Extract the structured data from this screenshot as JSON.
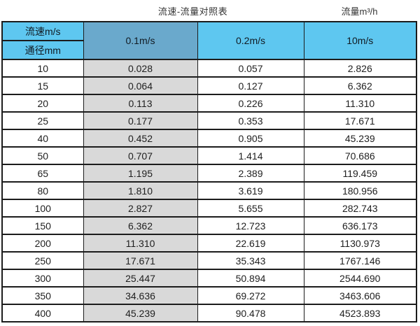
{
  "page": {
    "title_left": "流速-流量对照表",
    "title_right": "流量m³/h"
  },
  "colors": {
    "header_blue": "#5ec7f0",
    "header_steel": "#6aa9cc",
    "col1_gray": "#d9d9d9",
    "border": "#1c1c1c"
  },
  "table": {
    "corner_top": "流速m/s",
    "corner_bottom": "通径mm",
    "columns": [
      "0.1m/s",
      "0.2m/s",
      "10m/s"
    ],
    "rows": [
      {
        "dn": "10",
        "v1": "0.028",
        "v2": "0.057",
        "v3": "2.826"
      },
      {
        "dn": "15",
        "v1": "0.064",
        "v2": "0.127",
        "v3": "6.362"
      },
      {
        "dn": "20",
        "v1": "0.113",
        "v2": "0.226",
        "v3": "11.310"
      },
      {
        "dn": "25",
        "v1": "0.177",
        "v2": "0.353",
        "v3": "17.671"
      },
      {
        "dn": "40",
        "v1": "0.452",
        "v2": "0.905",
        "v3": "45.239"
      },
      {
        "dn": "50",
        "v1": "0.707",
        "v2": "1.414",
        "v3": "70.686"
      },
      {
        "dn": "65",
        "v1": "1.195",
        "v2": "2.389",
        "v3": "119.459"
      },
      {
        "dn": "80",
        "v1": "1.810",
        "v2": "3.619",
        "v3": "180.956"
      },
      {
        "dn": "100",
        "v1": "2.827",
        "v2": "5.655",
        "v3": "282.743"
      },
      {
        "dn": "150",
        "v1": "6.362",
        "v2": "12.723",
        "v3": "636.173"
      },
      {
        "dn": "200",
        "v1": "11.310",
        "v2": "22.619",
        "v3": "1130.973"
      },
      {
        "dn": "250",
        "v1": "17.671",
        "v2": "35.343",
        "v3": "1767.146"
      },
      {
        "dn": "300",
        "v1": "25.447",
        "v2": "50.894",
        "v3": "2544.690"
      },
      {
        "dn": "350",
        "v1": "34.636",
        "v2": "69.272",
        "v3": "3463.606"
      },
      {
        "dn": "400",
        "v1": "45.239",
        "v2": "90.478",
        "v3": "4523.893"
      }
    ]
  },
  "chart_data": {
    "type": "table",
    "title": "流速-流量对照表",
    "unit_label": "流量m³/h",
    "row_header": "通径mm",
    "col_header": "流速m/s",
    "columns": [
      "0.1m/s",
      "0.2m/s",
      "10m/s"
    ],
    "diameters_mm": [
      10,
      15,
      20,
      25,
      40,
      50,
      65,
      80,
      100,
      150,
      200,
      250,
      300,
      350,
      400
    ],
    "series": [
      {
        "name": "0.1m/s",
        "values": [
          0.028,
          0.064,
          0.113,
          0.177,
          0.452,
          0.707,
          1.195,
          1.81,
          2.827,
          6.362,
          11.31,
          17.671,
          25.447,
          34.636,
          45.239
        ]
      },
      {
        "name": "0.2m/s",
        "values": [
          0.057,
          0.127,
          0.226,
          0.353,
          0.905,
          1.414,
          2.389,
          3.619,
          5.655,
          12.723,
          22.619,
          35.343,
          50.894,
          69.272,
          90.478
        ]
      },
      {
        "name": "10m/s",
        "values": [
          2.826,
          6.362,
          11.31,
          17.671,
          45.239,
          70.686,
          119.459,
          180.956,
          282.743,
          636.173,
          1130.973,
          1767.146,
          2544.69,
          3463.606,
          4523.893
        ]
      }
    ]
  }
}
